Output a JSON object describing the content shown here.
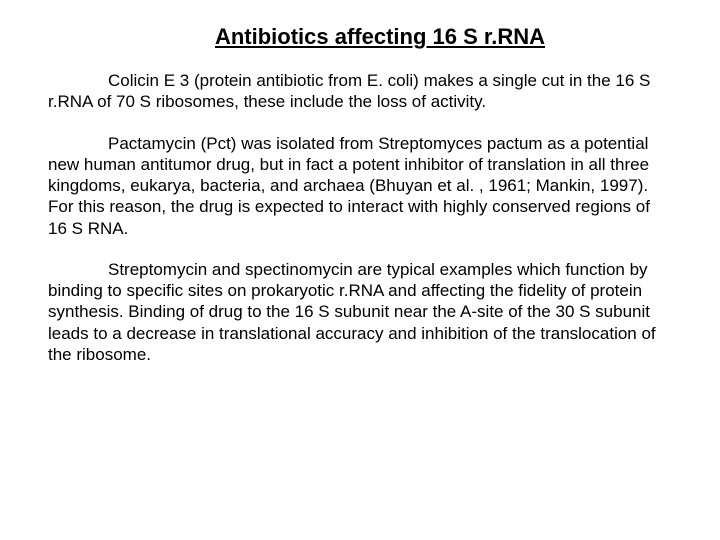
{
  "title": "Antibiotics affecting 16 S r.RNA",
  "paragraphs": {
    "p1": "Colicin E 3 (protein antibiotic from E. coli) makes a single cut in the 16 S r.RNA of 70 S ribosomes, these include the loss of activity.",
    "p2": "Pactamycin (Pct) was isolated from Streptomyces pactum as a potential new human antitumor drug, but in fact a potent inhibitor of translation in all three kingdoms, eukarya, bacteria, and archaea (Bhuyan et al. , 1961; Mankin, 1997). For this reason, the drug is expected to interact with highly conserved regions of 16 S RNA.",
    "p3": "Streptomycin and spectinomycin are typical examples which function by binding to specific sites on prokaryotic r.RNA and affecting the fidelity of protein synthesis. Binding of drug to the 16 S subunit near the A-site of the 30 S subunit leads to a decrease in translational accuracy and inhibition of the translocation of the ribosome."
  },
  "colors": {
    "background": "#ffffff",
    "text": "#000000"
  },
  "typography": {
    "font_family": "Comic Sans MS",
    "title_fontsize": 22,
    "body_fontsize": 17
  }
}
